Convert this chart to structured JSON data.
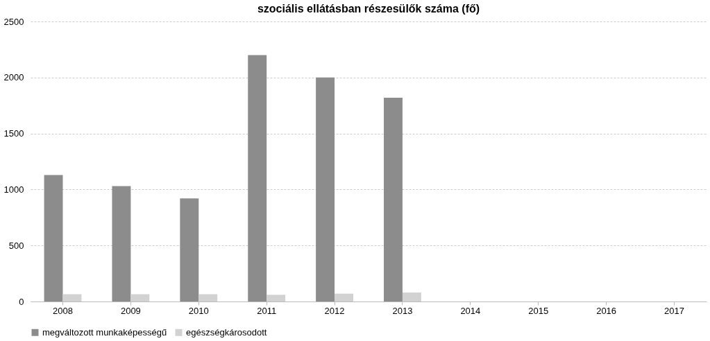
{
  "chart_data": {
    "type": "bar",
    "title": "szociális ellátásban részesülők száma (fő)",
    "categories": [
      "2008",
      "2009",
      "2010",
      "2011",
      "2012",
      "2013",
      "2014",
      "2015",
      "2016",
      "2017"
    ],
    "series": [
      {
        "name": "megváltozott munkaképességű",
        "color": "#8c8c8c",
        "values": [
          1130,
          1030,
          920,
          2200,
          2000,
          1820,
          null,
          null,
          null,
          null
        ]
      },
      {
        "name": "egészségkárosodott",
        "color": "#d2d2d2",
        "values": [
          65,
          65,
          65,
          60,
          70,
          80,
          null,
          null,
          null,
          null
        ]
      }
    ],
    "ylim": [
      0,
      2500
    ],
    "yticks": [
      0,
      500,
      1000,
      1500,
      2000,
      2500
    ],
    "grid": "y",
    "legend": "bottom"
  }
}
